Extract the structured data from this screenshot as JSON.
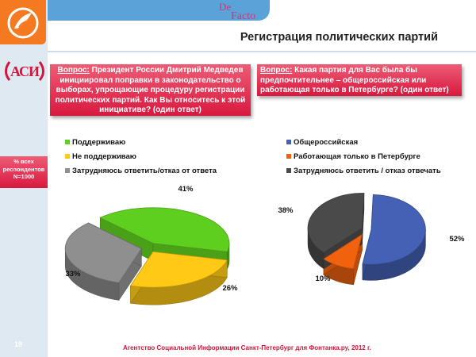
{
  "header": {
    "brand_de": "De",
    "brand_facto": "Facto",
    "acu_logo_text": "АСИ",
    "title": "Регистрация политических партий"
  },
  "question1": {
    "prefix": "Вопрос:",
    "text": " Президент России Дмитрий Медведев инициировал поправки в законодательство о выборах, упрощающие процедуру регистрации политических партий. Как Вы относитесь к этой инициативе? (один ответ)"
  },
  "question2": {
    "prefix": "Вопрос:",
    "text": " Какая партия для Вас была бы предпочтительнее – общероссийская или работающая только в Петербурге? (один ответ)"
  },
  "respondents": {
    "line1": "% всех",
    "line2": "респондентов",
    "line3": "N=1000"
  },
  "footer": {
    "page": "19",
    "source": "Агентство Социальной Информации Санкт-Петербург для Фонтанка.ру, 2012 г."
  },
  "chart_data": [
    {
      "type": "pie",
      "categories": [
        "Поддерживаю",
        "Не поддерживаю",
        "Затрудняюсь ответить/отказ от ответа"
      ],
      "values": [
        41,
        26,
        33
      ],
      "labels": [
        "41%",
        "26%",
        "33%"
      ],
      "colors": [
        "#5fcf1f",
        "#ffc915",
        "#8f8f8f"
      ],
      "legend": "top-left"
    },
    {
      "type": "pie",
      "categories": [
        "Общероссийская",
        "Работающая только в Петербурге",
        "Затрудняюсь ответить / отказ отвечать"
      ],
      "values": [
        52,
        10,
        38
      ],
      "labels": [
        "52%",
        "10%",
        "38%"
      ],
      "colors": [
        "#4461b5",
        "#f0620e",
        "#4a4a4a"
      ],
      "legend": "top"
    }
  ]
}
